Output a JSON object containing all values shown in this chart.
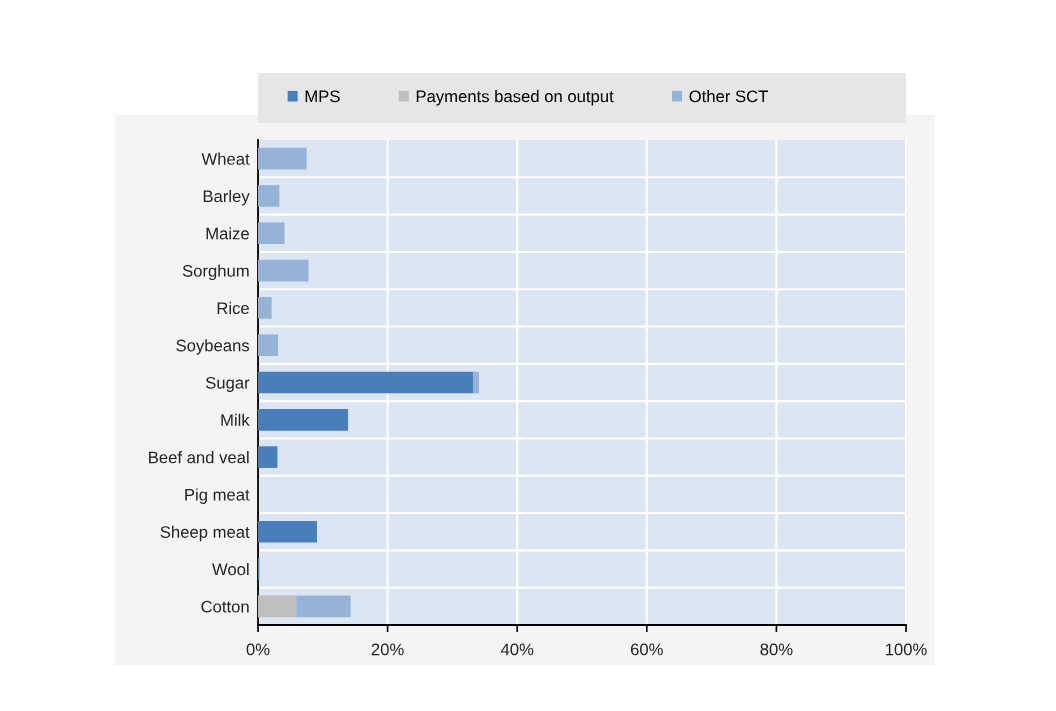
{
  "chart_data": {
    "type": "bar",
    "orientation": "horizontal",
    "stacked": true,
    "categories": [
      "Wheat",
      "Barley",
      "Maize",
      "Sorghum",
      "Rice",
      "Soybeans",
      "Sugar",
      "Milk",
      "Beef and veal",
      "Pig meat",
      "Sheep meat",
      "Wool",
      "Cotton"
    ],
    "series": [
      {
        "name": "MPS",
        "color": "#4a7ebb",
        "values": [
          0,
          0,
          0,
          0,
          0,
          0,
          33.2,
          13.9,
          3.0,
          0,
          9.1,
          0.2,
          0
        ]
      },
      {
        "name": "Payments based on output",
        "color": "#bfbfbf",
        "values": [
          0,
          0,
          0,
          0,
          0,
          0,
          0,
          0,
          0,
          0,
          0,
          0,
          5.9
        ]
      },
      {
        "name": "Other SCT",
        "color": "#95b3d7",
        "values": [
          7.5,
          3.3,
          4.1,
          7.8,
          2.1,
          3.1,
          0.9,
          0,
          0,
          0,
          0,
          0,
          8.4
        ]
      }
    ],
    "xlim": [
      0,
      100
    ],
    "xticks": [
      {
        "value": 0,
        "label": "0%"
      },
      {
        "value": 20,
        "label": "20%"
      },
      {
        "value": 40,
        "label": "40%"
      },
      {
        "value": 60,
        "label": "60%"
      },
      {
        "value": 80,
        "label": "80%"
      },
      {
        "value": 100,
        "label": "100%"
      }
    ],
    "grid": true,
    "legend": "top"
  }
}
